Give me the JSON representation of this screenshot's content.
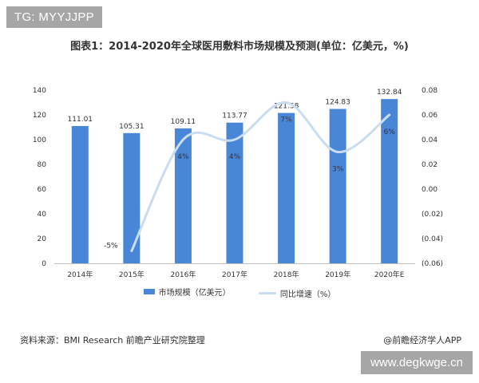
{
  "watermark_top": "TG: MYYJJPP",
  "watermark_bottom": "www.degkwge.cn",
  "source_note": "资料来源：BMI Research 前瞻产业研究院整理",
  "credit": "@前瞻经济学人APP",
  "colors": {
    "bar": "#4a86d8",
    "line": "#c9dcf0"
  },
  "chart_data": {
    "type": "bar",
    "title": "图表1：2014-2020年全球医用敷料市场规模及预测(单位：亿美元，%)",
    "categories": [
      "2014年",
      "2015年",
      "2016年",
      "2017年",
      "2018年",
      "2019年",
      "2020年E"
    ],
    "series": [
      {
        "name": "市场规模（亿美元）",
        "type": "bar",
        "axis": "left",
        "values": [
          111.01,
          105.31,
          109.11,
          113.77,
          121.58,
          124.83,
          132.84
        ],
        "labels": [
          "111.01",
          "105.31",
          "109.11",
          "113.77",
          "121.58",
          "124.83",
          "132.84"
        ]
      },
      {
        "name": "同比增速（%）",
        "type": "line",
        "axis": "right",
        "values": [
          null,
          -0.05,
          0.04,
          0.04,
          0.07,
          0.03,
          0.06
        ],
        "labels": [
          "",
          "-5%",
          "4%",
          "4%",
          "7%",
          "3%",
          "6%"
        ]
      }
    ],
    "ylim": [
      0,
      140
    ],
    "yticks": [
      "0",
      "20",
      "40",
      "60",
      "80",
      "100",
      "120",
      "140"
    ],
    "y2lim": [
      -0.06,
      0.08
    ],
    "y2ticks": [
      "(0.06)",
      "(0.04)",
      "(0.02)",
      "0.00",
      "0.02",
      "0.04",
      "0.06",
      "0.08"
    ],
    "grid": false,
    "legend": "bottom"
  }
}
